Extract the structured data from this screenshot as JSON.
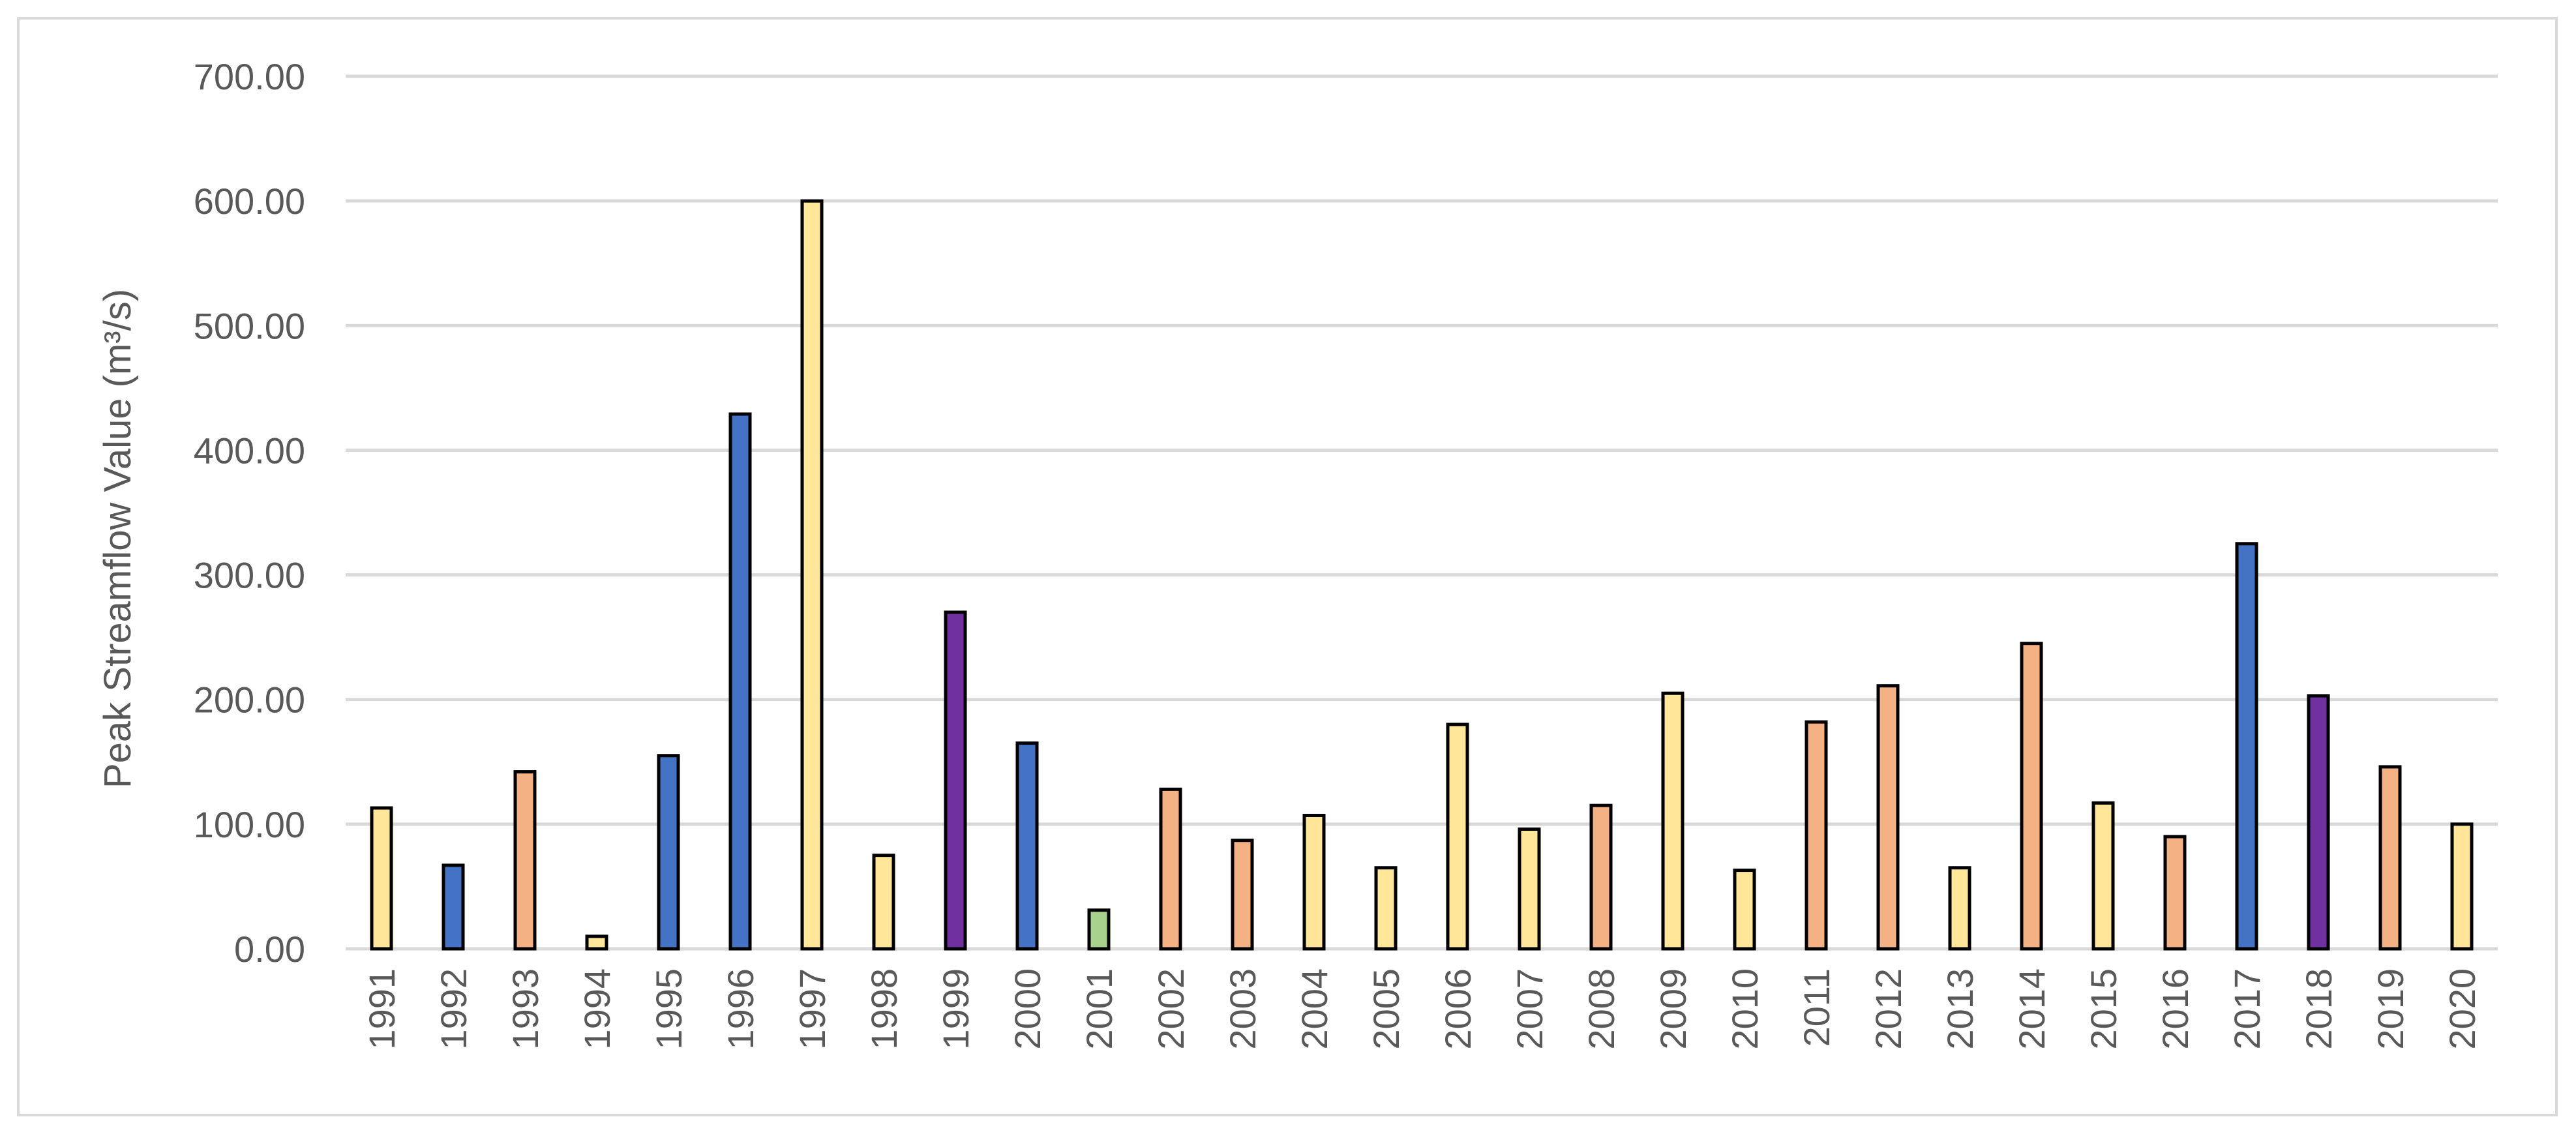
{
  "chart_data": {
    "type": "bar",
    "title": "",
    "xlabel": "",
    "ylabel": "Peak Streamflow Value (m³/s)",
    "ylim": [
      0,
      700
    ],
    "yticks": [
      0,
      100,
      200,
      300,
      400,
      500,
      600,
      700
    ],
    "ytick_labels": [
      "0.00",
      "100.00",
      "200.00",
      "300.00",
      "400.00",
      "500.00",
      "600.00",
      "700.00"
    ],
    "grid": true,
    "categories": [
      "1991",
      "1992",
      "1993",
      "1994",
      "1995",
      "1996",
      "1997",
      "1998",
      "1999",
      "2000",
      "2001",
      "2002",
      "2003",
      "2004",
      "2005",
      "2006",
      "2007",
      "2008",
      "2009",
      "2010",
      "2011",
      "2012",
      "2013",
      "2014",
      "2015",
      "2016",
      "2017",
      "2018",
      "2019",
      "2020"
    ],
    "values": [
      113,
      67,
      142,
      10,
      155,
      429,
      600,
      75,
      270,
      165,
      31,
      128,
      87,
      107,
      65,
      180,
      96,
      115,
      205,
      63,
      182,
      211,
      65,
      245,
      117,
      90,
      325,
      203,
      146,
      100
    ],
    "bar_colors": [
      "#ffe699",
      "#4472c4",
      "#f4b183",
      "#ffe699",
      "#4472c4",
      "#4472c4",
      "#ffe699",
      "#ffe699",
      "#7030a0",
      "#4472c4",
      "#a9d18e",
      "#f4b183",
      "#f4b183",
      "#ffe699",
      "#ffe699",
      "#ffe699",
      "#ffe699",
      "#f4b183",
      "#ffe699",
      "#ffe699",
      "#f4b183",
      "#f4b183",
      "#ffe699",
      "#f4b183",
      "#ffe699",
      "#f4b183",
      "#4472c4",
      "#7030a0",
      "#f4b183",
      "#ffe699"
    ]
  }
}
